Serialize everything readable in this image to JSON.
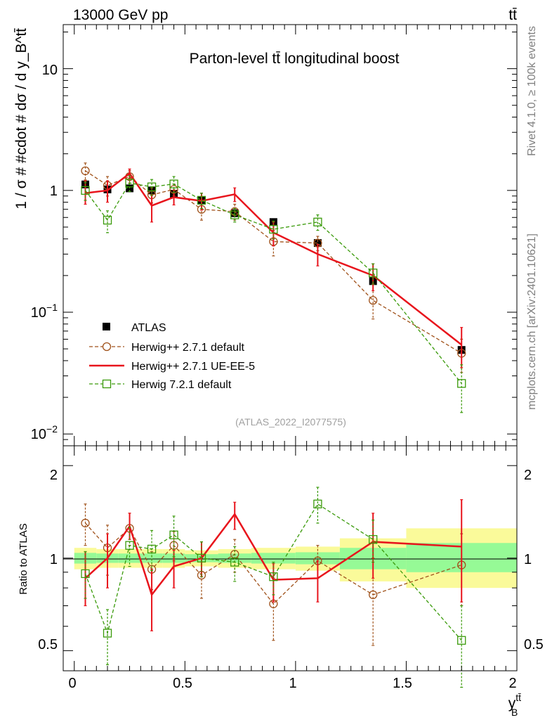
{
  "header": {
    "left_label": "13000 GeV pp",
    "right_label": "tt̄"
  },
  "side_labels": {
    "rivet": "Rivet 4.1.0, ≥ 100k events",
    "mcplots": "mcplots.cern.ch [arXiv:2401.10621]"
  },
  "colors": {
    "atlas": "#000000",
    "herwig_default": "#a0521b",
    "herwig_ueee5": "#e8141c",
    "herwig721": "#3a9a0a",
    "band_yellow": "#fafa9a",
    "band_green": "#96fa96"
  },
  "chart_data": [
    {
      "type": "line",
      "title": "Parton-level tt̄ longitudinal boost",
      "ylabel": "1 / σ # #cdot # dσ / d y_B^tt̄",
      "xlabel": "y_B^tt̄",
      "yscale": "log",
      "ylim": [
        0.008,
        23
      ],
      "xlim": [
        -0.05,
        2.0
      ],
      "ytick_labels": [
        "10",
        "1",
        "10^-1",
        "10^-2"
      ],
      "watermark": "(ATLAS_2022_I2077575)",
      "x": [
        0.05,
        0.15,
        0.25,
        0.35,
        0.45,
        0.575,
        0.725,
        0.9,
        1.1,
        1.35,
        1.75
      ],
      "bin_edges": [
        0.0,
        0.1,
        0.2,
        0.3,
        0.4,
        0.5,
        0.65,
        0.8,
        1.0,
        1.2,
        1.5,
        2.0
      ],
      "series": [
        {
          "key": "atlas",
          "name": "ATLAS",
          "style": "points",
          "values": [
            1.12,
            1.02,
            1.04,
            1.0,
            0.94,
            0.83,
            0.65,
            0.55,
            0.37,
            0.18,
            0.049
          ]
        },
        {
          "key": "herwig_default",
          "name": "Herwig++ 2.7.1 default",
          "style": "dashed-circle",
          "values": [
            1.45,
            1.1,
            1.3,
            0.92,
            1.02,
            0.7,
            0.67,
            0.38,
            0.37,
            0.125,
            0.046
          ],
          "err_hi": [
            1.68,
            1.3,
            1.45,
            1.05,
            1.13,
            0.83,
            0.77,
            0.47,
            0.42,
            0.17,
            0.06
          ],
          "err_lo": [
            1.22,
            0.9,
            1.15,
            0.79,
            0.91,
            0.57,
            0.57,
            0.29,
            0.32,
            0.088,
            0.032
          ]
        },
        {
          "key": "herwig_ueee5",
          "name": "Herwig++ 2.7.1 UE-EE-5",
          "style": "solid-line",
          "values": [
            0.95,
            1.0,
            1.38,
            0.75,
            0.88,
            0.82,
            0.93,
            0.45,
            0.3,
            0.2,
            0.054
          ],
          "err_hi": [
            1.2,
            1.2,
            1.5,
            0.92,
            1.0,
            0.95,
            1.05,
            0.55,
            0.36,
            0.25,
            0.075
          ],
          "err_lo": [
            0.77,
            0.8,
            1.26,
            0.55,
            0.76,
            0.69,
            0.81,
            0.35,
            0.24,
            0.15,
            0.035
          ]
        },
        {
          "key": "herwig721",
          "name": "Herwig 7.2.1 default",
          "style": "dashed-square",
          "values": [
            1.0,
            0.57,
            1.15,
            1.07,
            1.13,
            0.83,
            0.63,
            0.48,
            0.55,
            0.21,
            0.026
          ],
          "err_hi": [
            1.17,
            0.68,
            1.32,
            1.23,
            1.3,
            0.95,
            0.71,
            0.56,
            0.63,
            0.25,
            0.037
          ],
          "err_lo": [
            0.83,
            0.45,
            0.98,
            0.91,
            0.96,
            0.71,
            0.55,
            0.4,
            0.47,
            0.17,
            0.015
          ]
        }
      ]
    },
    {
      "type": "line",
      "ylabel": "Ratio to ATLAS",
      "xlabel": "y_B^tt̄",
      "yscale": "log",
      "ylim": [
        0.43,
        2.32
      ],
      "xlim": [
        -0.05,
        2.0
      ],
      "yticks": [
        0.5,
        1,
        2
      ],
      "ytick_labels": [
        "0.5",
        "1",
        "2"
      ],
      "xticks": [
        0,
        0.5,
        1,
        1.5,
        2
      ],
      "xtick_labels": [
        "0",
        "0.5",
        "1",
        "1.5",
        "2"
      ],
      "bin_edges": [
        0.0,
        0.1,
        0.2,
        0.3,
        0.4,
        0.5,
        0.65,
        0.8,
        1.0,
        1.2,
        1.5,
        2.0
      ],
      "band_yellow": [
        [
          0.92,
          1.08
        ],
        [
          0.93,
          1.07
        ],
        [
          0.93,
          1.07
        ],
        [
          0.93,
          1.07
        ],
        [
          0.93,
          1.07
        ],
        [
          0.94,
          1.06
        ],
        [
          0.93,
          1.07
        ],
        [
          0.92,
          1.08
        ],
        [
          0.91,
          1.09
        ],
        [
          0.84,
          1.16
        ],
        [
          0.8,
          1.25
        ]
      ],
      "band_green": [
        [
          0.96,
          1.04
        ],
        [
          0.965,
          1.035
        ],
        [
          0.965,
          1.035
        ],
        [
          0.965,
          1.035
        ],
        [
          0.965,
          1.035
        ],
        [
          0.97,
          1.03
        ],
        [
          0.965,
          1.035
        ],
        [
          0.96,
          1.04
        ],
        [
          0.955,
          1.045
        ],
        [
          0.92,
          1.08
        ],
        [
          0.9,
          1.12
        ]
      ],
      "x": [
        0.05,
        0.15,
        0.25,
        0.35,
        0.45,
        0.575,
        0.725,
        0.9,
        1.1,
        1.35,
        1.75
      ],
      "series": [
        {
          "key": "herwig_default",
          "name": "Herwig++ 2.7.1 default",
          "style": "dashed-circle",
          "values": [
            1.3,
            1.08,
            1.25,
            0.92,
            1.1,
            0.88,
            1.03,
            0.71,
            0.98,
            0.76,
            0.95
          ],
          "err_hi": [
            1.5,
            1.28,
            1.4,
            1.05,
            1.22,
            1.0,
            1.15,
            0.86,
            1.1,
            1.0,
            1.2
          ],
          "err_lo": [
            1.1,
            0.88,
            1.1,
            0.79,
            0.98,
            0.74,
            0.9,
            0.54,
            0.86,
            0.52,
            0.7
          ]
        },
        {
          "key": "herwig_ueee5",
          "name": "Herwig++ 2.7.1 UE-EE-5",
          "style": "solid-line",
          "values": [
            0.86,
            1.0,
            1.27,
            0.76,
            0.94,
            1.0,
            1.39,
            0.85,
            0.86,
            1.13,
            1.09
          ],
          "err_hi": [
            1.05,
            1.2,
            1.4,
            0.92,
            1.06,
            1.13,
            1.52,
            0.96,
            0.98,
            1.4,
            1.55
          ],
          "err_lo": [
            0.7,
            0.8,
            1.15,
            0.58,
            0.8,
            0.87,
            1.24,
            0.72,
            0.72,
            0.86,
            0.72
          ]
        },
        {
          "key": "herwig721",
          "name": "Herwig 7.2.1 default",
          "style": "dashed-square",
          "values": [
            0.89,
            0.57,
            1.1,
            1.07,
            1.19,
            1.0,
            0.97,
            0.87,
            1.5,
            1.15,
            0.54
          ],
          "err_hi": [
            1.05,
            0.68,
            1.26,
            1.23,
            1.37,
            1.13,
            1.09,
            0.97,
            1.7,
            1.33,
            0.7
          ],
          "err_lo": [
            0.74,
            0.45,
            0.94,
            0.91,
            1.01,
            0.87,
            0.84,
            0.76,
            1.3,
            0.97,
            0.38
          ]
        }
      ]
    }
  ]
}
